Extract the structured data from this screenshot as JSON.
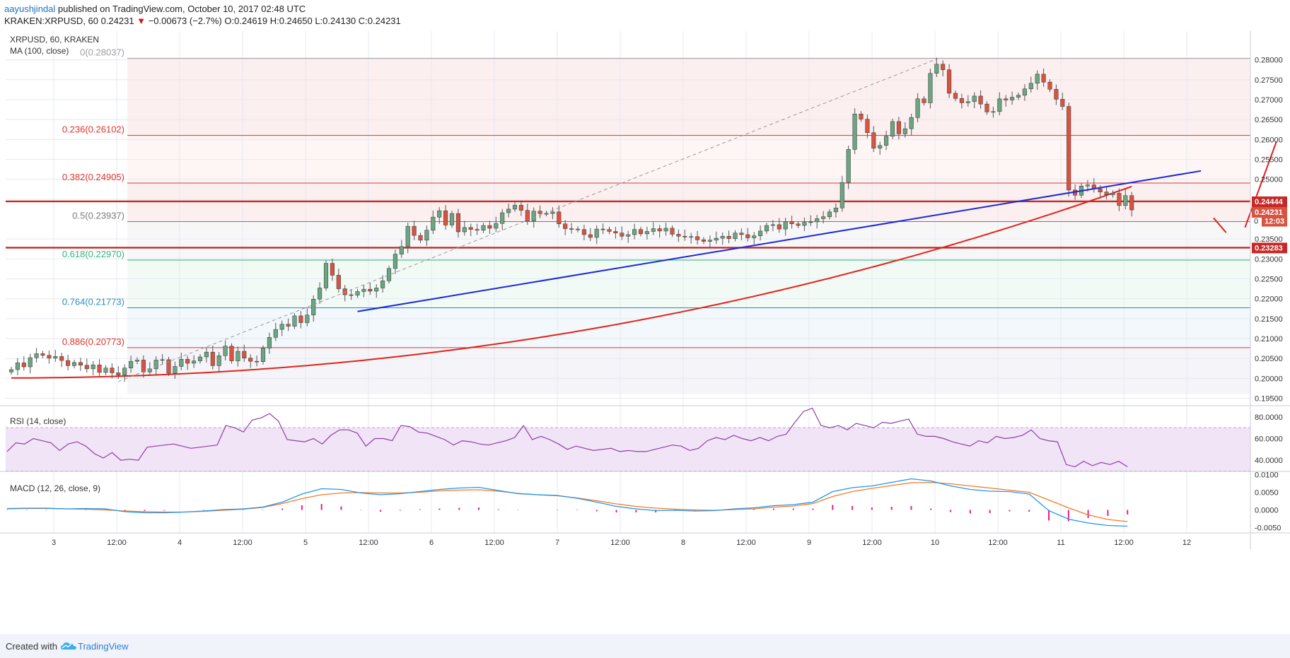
{
  "header": {
    "author": "aayushjindal",
    "published": "published on TradingView.com, October 10, 2017 02:48 UTC",
    "symbol": "KRAKEN:XRPUSD, 60",
    "last": "0.24231",
    "arrow": "▼",
    "change": "−0.00673 (−2.7%)",
    "ohlc": "O:0.24619 H:0.24650 L:0.24130 C:0.24231"
  },
  "legend": {
    "symbol": "XRPUSD, 60, KRAKEN",
    "ma": "MA (100, close)",
    "rsi": "RSI (14, close)",
    "macd": "MACD (12, 26, close, 9)"
  },
  "footer": {
    "created": "Created with",
    "brand": "TradingView"
  },
  "colors": {
    "up": "#6ba583",
    "down": "#d75442",
    "ma": "#e2231a",
    "trend": "#1a28d8",
    "rsi": "#8e3fa3",
    "macd": "#2196f3",
    "signal": "#f57c1f",
    "hist": "#e91e8c"
  },
  "chart_data": [
    {
      "type": "candlestick",
      "title": "XRPUSD, 60, KRAKEN",
      "ylim": [
        0.1935,
        0.2865
      ],
      "y_ticks": [
        "0.28000",
        "0.27500",
        "0.27000",
        "0.26500",
        "0.26000",
        "0.25500",
        "0.25000",
        "0.24500",
        "0.23500",
        "0.23000",
        "0.22500",
        "0.22000",
        "0.21500",
        "0.21000",
        "0.20500",
        "0.20000",
        "0.19500"
      ],
      "x_ticks": [
        "3",
        "12:00",
        "4",
        "12:00",
        "5",
        "12:00",
        "6",
        "12:00",
        "7",
        "12:00",
        "8",
        "12:00",
        "9",
        "12:00",
        "10",
        "12:00",
        "11",
        "12:00",
        "12"
      ],
      "close": [
        0.2022,
        0.2039,
        0.2029,
        0.2052,
        0.2062,
        0.2058,
        0.2051,
        0.2055,
        0.2045,
        0.2032,
        0.204,
        0.2033,
        0.2024,
        0.2034,
        0.2015,
        0.2026,
        0.2014,
        0.2008,
        0.2026,
        0.2043,
        0.2046,
        0.2016,
        0.2024,
        0.2046,
        0.2047,
        0.2013,
        0.203,
        0.2048,
        0.2038,
        0.2044,
        0.2054,
        0.2066,
        0.2032,
        0.2057,
        0.2081,
        0.2044,
        0.2068,
        0.2051,
        0.2043,
        0.2042,
        0.2076,
        0.2103,
        0.2123,
        0.2136,
        0.2131,
        0.2157,
        0.214,
        0.2159,
        0.2199,
        0.2227,
        0.2289,
        0.2259,
        0.2225,
        0.221,
        0.2209,
        0.2218,
        0.2224,
        0.2219,
        0.2227,
        0.2245,
        0.2276,
        0.2312,
        0.2331,
        0.2382,
        0.2359,
        0.2347,
        0.2372,
        0.2405,
        0.2421,
        0.2385,
        0.2414,
        0.2368,
        0.2379,
        0.2374,
        0.2372,
        0.2384,
        0.2377,
        0.2389,
        0.2416,
        0.2425,
        0.2435,
        0.2422,
        0.2395,
        0.242,
        0.2414,
        0.2414,
        0.2418,
        0.2388,
        0.2376,
        0.2375,
        0.2374,
        0.2361,
        0.2354,
        0.2375,
        0.2374,
        0.2369,
        0.2365,
        0.2357,
        0.2361,
        0.2374,
        0.2363,
        0.2369,
        0.2376,
        0.237,
        0.2377,
        0.2362,
        0.2357,
        0.2355,
        0.2356,
        0.2348,
        0.2344,
        0.2347,
        0.2352,
        0.2357,
        0.2351,
        0.2365,
        0.2361,
        0.2353,
        0.2358,
        0.237,
        0.2384,
        0.2386,
        0.2375,
        0.2394,
        0.2388,
        0.2384,
        0.2392,
        0.2393,
        0.2401,
        0.2406,
        0.2418,
        0.2428,
        0.2492,
        0.2575,
        0.2664,
        0.2651,
        0.2617,
        0.2578,
        0.2585,
        0.2608,
        0.2645,
        0.2614,
        0.2627,
        0.2655,
        0.2702,
        0.2692,
        0.2766,
        0.2789,
        0.2775,
        0.2716,
        0.2703,
        0.2692,
        0.2695,
        0.2709,
        0.2689,
        0.2669,
        0.267,
        0.2702,
        0.2699,
        0.2706,
        0.2711,
        0.2727,
        0.2741,
        0.2764,
        0.2744,
        0.2726,
        0.2701,
        0.2683,
        0.2473,
        0.246,
        0.2483,
        0.2486,
        0.2476,
        0.2468,
        0.2461,
        0.2465,
        0.2434,
        0.2459,
        0.2423
      ],
      "ma_100_endpoints": {
        "start": 0.2001,
        "end": 0.2482
      },
      "levels": [
        {
          "label": "0(0.28037)",
          "value": 0.28037,
          "color": "#9e9e9e"
        },
        {
          "label": "0.236(0.26102)",
          "value": 0.26102,
          "color": "#e0352b"
        },
        {
          "label": "0.382(0.24905)",
          "value": 0.24905,
          "color": "#e0352b"
        },
        {
          "label": "0.5(0.23937)",
          "value": 0.23937,
          "color": "#7a7a7a"
        },
        {
          "label": "0.618(0.22970)",
          "value": 0.2297,
          "color": "#2eb87a"
        },
        {
          "label": "0.764(0.21773)",
          "value": 0.21773,
          "color": "#2c8fbf"
        },
        {
          "label": "0.886(0.20773)",
          "value": 0.20773,
          "color": "#e0352b"
        }
      ],
      "horizontal_lines": [
        0.24444,
        0.23283
      ],
      "price_tags": [
        {
          "label": "0.24444",
          "value": 0.24444,
          "color": "#c62828"
        },
        {
          "label": "0.24231",
          "value": 0.24231,
          "color": "#d75442"
        },
        {
          "label": "0",
          "value": 0.23937,
          "color": "#999999"
        },
        {
          "label": "12:03",
          "value": 0.23937,
          "color": "#d75442"
        },
        {
          "label": "0.23283",
          "value": 0.23283,
          "color": "#c62828"
        }
      ],
      "trendline": [
        [
          0.2168,
          55
        ],
        [
          0.2521,
          189
        ]
      ],
      "projection": [
        [
          0.2403,
          191
        ],
        [
          0.2366,
          193
        ],
        [
          0.2379,
          196
        ],
        [
          0.2595,
          201
        ]
      ]
    },
    {
      "type": "line",
      "title": "RSI (14, close)",
      "ylim": [
        31,
        89
      ],
      "y_ticks": [
        "80.0000",
        "60.0000",
        "40.0000"
      ],
      "bands": [
        70,
        30
      ],
      "values": [
        48,
        56,
        55,
        60,
        58,
        56,
        49,
        55,
        57,
        53,
        46,
        42,
        47,
        40,
        41,
        40,
        52,
        53,
        54,
        55,
        53,
        51,
        52,
        53,
        54,
        72,
        70,
        66,
        77,
        79,
        83,
        76,
        59,
        58,
        57,
        60,
        55,
        63,
        68,
        68,
        65,
        53,
        60,
        60,
        58,
        72,
        71,
        66,
        65,
        62,
        59,
        54,
        58,
        57,
        55,
        54,
        56,
        58,
        61,
        72,
        59,
        62,
        59,
        55,
        50,
        53,
        51,
        49,
        50,
        51,
        48,
        49,
        48,
        48,
        50,
        52,
        54,
        53,
        49,
        51,
        58,
        61,
        59,
        63,
        60,
        58,
        61,
        58,
        62,
        64,
        75,
        85,
        88,
        72,
        70,
        72,
        68,
        74,
        72,
        70,
        75,
        74,
        76,
        78,
        64,
        62,
        62,
        60,
        57,
        55,
        53,
        58,
        56,
        62,
        60,
        61,
        63,
        68,
        60,
        58,
        57,
        36,
        34,
        39,
        35,
        38,
        36,
        39,
        34
      ]
    },
    {
      "type": "line",
      "title": "MACD (12, 26, close, 9)",
      "ylim": [
        -0.0065,
        0.0105
      ],
      "y_ticks": [
        "0.0100",
        "0.0050",
        "0.0000",
        "-0.0050"
      ],
      "macd": [
        0.0004,
        0.0005,
        0.0005,
        0.0003,
        0.0004,
        0.0003,
        -0.0005,
        -0.0008,
        -0.0008,
        -0.0006,
        -0.0003,
        0.0001,
        0.0003,
        0.0008,
        0.0022,
        0.0045,
        0.006,
        0.0058,
        0.0048,
        0.0043,
        0.0046,
        0.0052,
        0.0058,
        0.0062,
        0.0064,
        0.0055,
        0.0046,
        0.0043,
        0.0041,
        0.0033,
        0.0022,
        0.001,
        0.0003,
        -0.0002,
        -0.0001,
        -0.0003,
        -0.0002,
        0.0003,
        0.0006,
        0.0012,
        0.0015,
        0.0022,
        0.0052,
        0.0063,
        0.0068,
        0.0078,
        0.0088,
        0.0082,
        0.0068,
        0.0058,
        0.0053,
        0.0052,
        0.0045,
        -0.0002,
        -0.0026,
        -0.0037,
        -0.0044,
        -0.0046
      ],
      "signal": [
        0.0003,
        0.0004,
        0.0004,
        0.0003,
        0.0002,
        0,
        -0.0003,
        -0.0005,
        -0.0006,
        -0.0006,
        -0.0004,
        -0.0001,
        0.0002,
        0.0007,
        0.0018,
        0.0032,
        0.0043,
        0.0048,
        0.0049,
        0.0048,
        0.0048,
        0.005,
        0.0054,
        0.0056,
        0.0057,
        0.0053,
        0.0047,
        0.0043,
        0.004,
        0.0034,
        0.0026,
        0.0017,
        0.001,
        0.0005,
        0.0002,
        0,
        -0.0001,
        0.0001,
        0.0003,
        0.0008,
        0.0011,
        0.0018,
        0.0038,
        0.0052,
        0.0061,
        0.0069,
        0.0077,
        0.0078,
        0.0074,
        0.0068,
        0.0062,
        0.0056,
        0.005,
        0.0028,
        0.0006,
        -0.0014,
        -0.0027,
        -0.0033
      ],
      "histogram": [
        0.0001,
        0.0001,
        0.0001,
        0,
        0.0002,
        0.0003,
        -0.0002,
        -0.0003,
        -0.0002,
        0,
        0.0001,
        0.0002,
        0.0001,
        0.0001,
        0.0004,
        0.0013,
        0.0017,
        0.001,
        -0.0001,
        -0.0005,
        -0.0002,
        0.0002,
        0.0004,
        0.0006,
        0.0007,
        0.0002,
        -0.0001,
        0,
        0.0001,
        -0.0001,
        -0.0004,
        -0.0007,
        -0.0007,
        -0.0007,
        -0.0003,
        -0.0003,
        -0.0001,
        0.0002,
        0.0003,
        0.0004,
        0.0004,
        0.0004,
        0.0014,
        0.0011,
        0.0007,
        0.0009,
        0.0011,
        0.0004,
        -0.0006,
        -0.001,
        -0.0009,
        -0.0004,
        -0.0005,
        -0.003,
        -0.0032,
        -0.0023,
        -0.0017,
        -0.0013
      ]
    }
  ]
}
